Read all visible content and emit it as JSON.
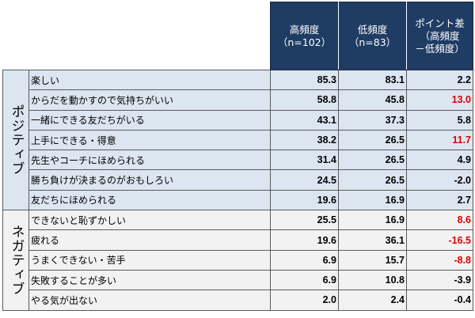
{
  "header": {
    "col_high": "高頻度\n（n=102）",
    "col_low": "低頻度\n（n=83）",
    "col_diff": "ポイント差\n（高頻度\n－低頻度）"
  },
  "groups": {
    "positive": "ポジティブ",
    "negative": "ネガティブ"
  },
  "rows": [
    {
      "label": "楽しい",
      "high": "85.3",
      "low": "83.1",
      "diff": "2.2",
      "diff_color": "#000000"
    },
    {
      "label": "からだを動かすので気持ちがいい",
      "high": "58.8",
      "low": "45.8",
      "diff": "13.0",
      "diff_color": "#e00000"
    },
    {
      "label": "一緒にできる友だちがいる",
      "high": "43.1",
      "low": "37.3",
      "diff": "5.8",
      "diff_color": "#000000"
    },
    {
      "label": "上手にできる・得意",
      "high": "38.2",
      "low": "26.5",
      "diff": "11.7",
      "diff_color": "#e00000"
    },
    {
      "label": "先生やコーチにほめられる",
      "high": "31.4",
      "low": "26.5",
      "diff": "4.9",
      "diff_color": "#000000"
    },
    {
      "label": "勝ち負けが決まるのがおもしろい",
      "high": "24.5",
      "low": "26.5",
      "diff": "-2.0",
      "diff_color": "#000000"
    },
    {
      "label": "友だちにほめられる",
      "high": "19.6",
      "low": "16.9",
      "diff": "2.7",
      "diff_color": "#000000"
    },
    {
      "label": "できないと恥ずかしい",
      "high": "25.5",
      "low": "16.9",
      "diff": "8.6",
      "diff_color": "#e00000"
    },
    {
      "label": "疲れる",
      "high": "19.6",
      "low": "36.1",
      "diff": "-16.5",
      "diff_color": "#e00000"
    },
    {
      "label": "うまくできない・苦手",
      "high": "6.9",
      "low": "15.7",
      "diff": "-8.8",
      "diff_color": "#e00000"
    },
    {
      "label": "失敗することが多い",
      "high": "6.9",
      "low": "10.8",
      "diff": "-3.9",
      "diff_color": "#000000"
    },
    {
      "label": "やる気が出ない",
      "high": "2.0",
      "low": "2.4",
      "diff": "-0.4",
      "diff_color": "#000000"
    }
  ]
}
